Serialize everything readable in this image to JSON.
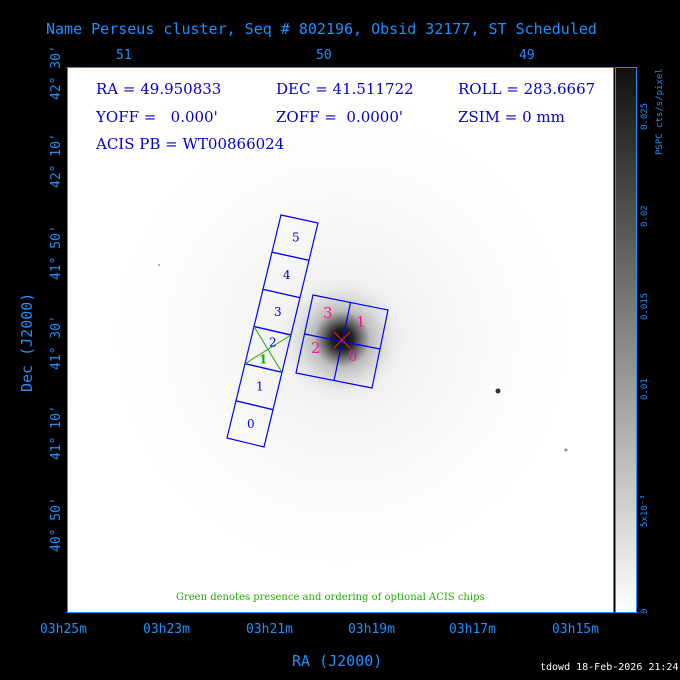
{
  "title": "Name Perseus cluster, Seq # 802196, Obsid 32177, ST Scheduled",
  "top_axis_ticks": [
    "51",
    "50",
    "49"
  ],
  "left_axis_ticks": [
    "42° 30'",
    "42° 10'",
    "41° 50'",
    "41° 30'",
    "41° 10'",
    "40° 50'"
  ],
  "bottom_axis_ticks": [
    "03h25m",
    "03h23m",
    "03h21m",
    "03h19m",
    "03h17m",
    "03h15m"
  ],
  "xlabel": "RA (J2000)",
  "ylabel": "Dec (J2000)",
  "info": {
    "ra": "RA = 49.950833",
    "dec": "DEC = 41.511722",
    "roll": "ROLL = 283.6667",
    "yoff": "YOFF =   0.000'",
    "zoff": "ZOFF =  0.0000'",
    "zsim": "ZSIM = 0 mm",
    "acis_pb": "ACIS PB = WT00866024"
  },
  "note": "Green denotes presence and ordering of optional ACIS chips",
  "colorbar": {
    "label": "PSPC cts/s/pixel",
    "ticks": [
      "0.025",
      "0.02",
      "0.015",
      "0.01",
      "5x10⁻³",
      "0"
    ]
  },
  "s_chips": [
    "0",
    "1",
    "2",
    "3",
    "4",
    "5"
  ],
  "i_chips": [
    "3",
    "1",
    "2",
    "0"
  ],
  "optional_chip": "1",
  "footer": "tdowd 18-Feb-2026 21:24",
  "colors": {
    "axis": "#1e90ff",
    "chips": "#0000ff",
    "i_labels": "#ff1493",
    "optional": "#22aa00"
  }
}
